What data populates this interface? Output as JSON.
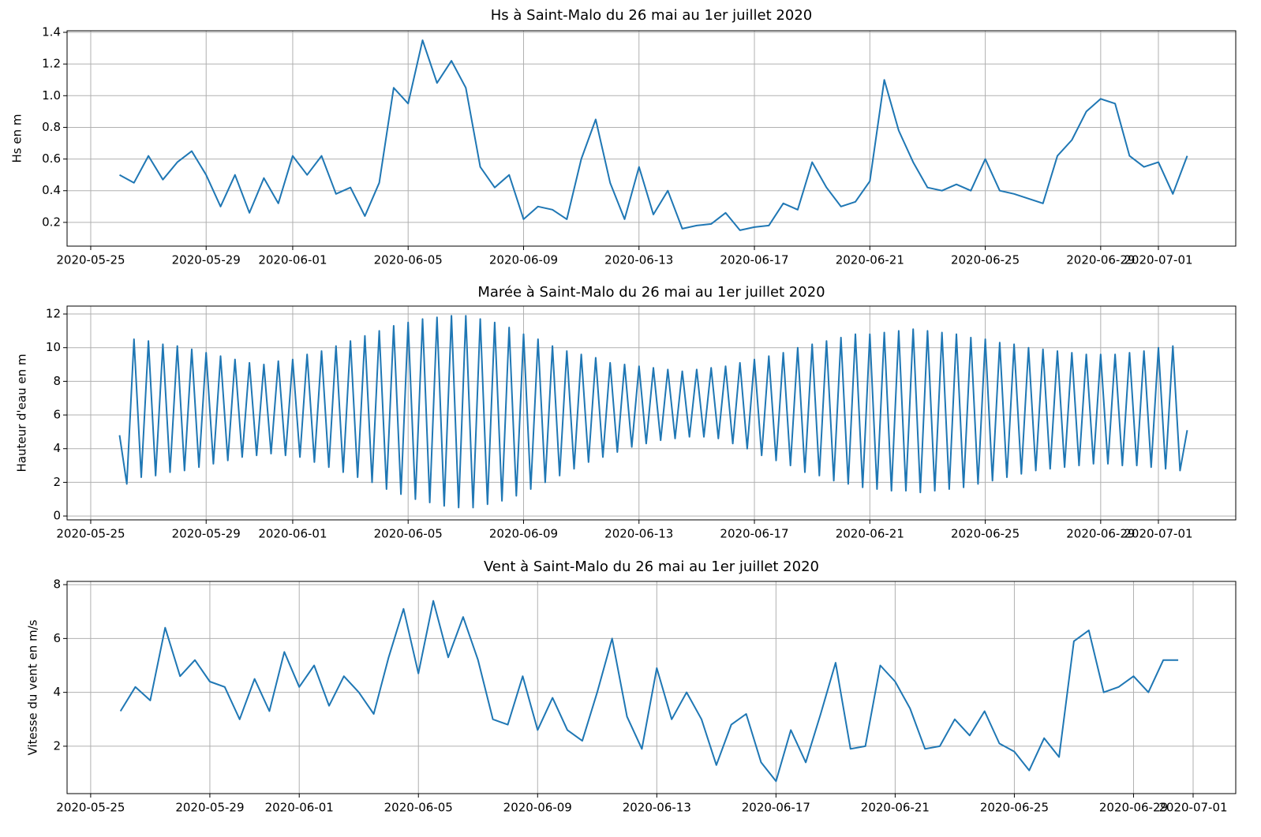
{
  "chart_data": [
    {
      "type": "line",
      "title": "Hs à Saint-Malo du 26 mai au 1er juillet 2020",
      "ylabel": "Hs en m",
      "color": "#1f77b4",
      "grid": true,
      "xlim": [
        "2020-05-24 04:20",
        "2020-07-03 16:20"
      ],
      "xticks": [
        "2020-05-25",
        "2020-05-29",
        "2020-06-01",
        "2020-06-05",
        "2020-06-09",
        "2020-06-13",
        "2020-06-17",
        "2020-06-21",
        "2020-06-25",
        "2020-06-29",
        "2020-07-01"
      ],
      "ylim": [
        0.05,
        1.41
      ],
      "yticks": [
        0.2,
        0.4,
        0.6,
        0.8,
        {
          "value": 1,
          "label": "1.0"
        },
        1.2,
        1.4
      ],
      "x": [
        "2020-05-26 00:00",
        "2020-05-26 12:00",
        "2020-05-27 00:00",
        "2020-05-27 12:00",
        "2020-05-28 00:00",
        "2020-05-28 12:00",
        "2020-05-29 00:00",
        "2020-05-29 12:00",
        "2020-05-30 00:00",
        "2020-05-30 12:00",
        "2020-05-31 00:00",
        "2020-05-31 12:00",
        "2020-06-01 00:00",
        "2020-06-01 12:00",
        "2020-06-02 00:00",
        "2020-06-02 12:00",
        "2020-06-03 00:00",
        "2020-06-03 12:00",
        "2020-06-04 00:00",
        "2020-06-04 12:00",
        "2020-06-05 00:00",
        "2020-06-05 12:00",
        "2020-06-06 00:00",
        "2020-06-06 12:00",
        "2020-06-07 00:00",
        "2020-06-07 12:00",
        "2020-06-08 00:00",
        "2020-06-08 12:00",
        "2020-06-09 00:00",
        "2020-06-09 12:00",
        "2020-06-10 00:00",
        "2020-06-10 12:00",
        "2020-06-11 00:00",
        "2020-06-11 12:00",
        "2020-06-12 00:00",
        "2020-06-12 12:00",
        "2020-06-13 00:00",
        "2020-06-13 12:00",
        "2020-06-14 00:00",
        "2020-06-14 12:00",
        "2020-06-15 00:00",
        "2020-06-15 12:00",
        "2020-06-16 00:00",
        "2020-06-16 12:00",
        "2020-06-17 00:00",
        "2020-06-17 12:00",
        "2020-06-18 00:00",
        "2020-06-18 12:00",
        "2020-06-19 00:00",
        "2020-06-19 12:00",
        "2020-06-20 00:00",
        "2020-06-20 12:00",
        "2020-06-21 00:00",
        "2020-06-21 12:00",
        "2020-06-22 00:00",
        "2020-06-22 12:00",
        "2020-06-23 00:00",
        "2020-06-23 12:00",
        "2020-06-24 00:00",
        "2020-06-24 12:00",
        "2020-06-25 00:00",
        "2020-06-25 12:00",
        "2020-06-26 00:00",
        "2020-06-26 12:00",
        "2020-06-27 00:00",
        "2020-06-27 12:00",
        "2020-06-28 00:00",
        "2020-06-28 12:00",
        "2020-06-29 00:00",
        "2020-06-29 12:00",
        "2020-06-30 00:00",
        "2020-06-30 12:00",
        "2020-07-01 00:00",
        "2020-07-01 12:00",
        "2020-07-02 00:00"
      ],
      "values": [
        0.5,
        0.45,
        0.62,
        0.47,
        0.58,
        0.65,
        0.5,
        0.3,
        0.5,
        0.26,
        0.48,
        0.32,
        0.62,
        0.5,
        0.62,
        0.38,
        0.42,
        0.24,
        0.45,
        1.05,
        0.95,
        1.35,
        1.08,
        1.22,
        1.05,
        0.55,
        0.42,
        0.5,
        0.22,
        0.3,
        0.28,
        0.22,
        0.6,
        0.85,
        0.45,
        0.22,
        0.55,
        0.25,
        0.4,
        0.16,
        0.18,
        0.19,
        0.26,
        0.15,
        0.17,
        0.18,
        0.32,
        0.28,
        0.58,
        0.42,
        0.3,
        0.33,
        0.46,
        1.1,
        0.78,
        0.58,
        0.42,
        0.4,
        0.44,
        0.4,
        0.6,
        0.4,
        0.38,
        0.35,
        0.32,
        0.62,
        0.72,
        0.9,
        0.98,
        0.95,
        0.62,
        0.55,
        0.58,
        0.38,
        0.62
      ]
    },
    {
      "type": "line",
      "title": "Marée à Saint-Malo du 26 mai au 1er juillet 2020",
      "ylabel": "Hauteur d'eau en m",
      "color": "#1f77b4",
      "grid": true,
      "xlim": [
        "2020-05-24 04:20",
        "2020-07-03 16:20"
      ],
      "xticks": [
        "2020-05-25",
        "2020-05-29",
        "2020-06-01",
        "2020-06-05",
        "2020-06-09",
        "2020-06-13",
        "2020-06-17",
        "2020-06-21",
        "2020-06-25",
        "2020-06-29",
        "2020-07-01"
      ],
      "ylim": [
        -0.23,
        12.47
      ],
      "yticks": [
        0,
        2,
        4,
        6,
        8,
        10,
        12
      ],
      "x": [
        "2020-05-26 00:00",
        "2020-05-26 06:00",
        "2020-05-26 12:00",
        "2020-05-26 18:00",
        "2020-05-27 00:00",
        "2020-05-27 06:00",
        "2020-05-27 12:00",
        "2020-05-27 18:00",
        "2020-05-28 00:00",
        "2020-05-28 06:00",
        "2020-05-28 12:00",
        "2020-05-28 18:00",
        "2020-05-29 00:00",
        "2020-05-29 06:00",
        "2020-05-29 12:00",
        "2020-05-29 18:00",
        "2020-05-30 00:00",
        "2020-05-30 06:00",
        "2020-05-30 12:00",
        "2020-05-30 18:00",
        "2020-05-31 00:00",
        "2020-05-31 06:00",
        "2020-05-31 12:00",
        "2020-05-31 18:00",
        "2020-06-01 00:00",
        "2020-06-01 06:00",
        "2020-06-01 12:00",
        "2020-06-01 18:00",
        "2020-06-02 00:00",
        "2020-06-02 06:00",
        "2020-06-02 12:00",
        "2020-06-02 18:00",
        "2020-06-03 00:00",
        "2020-06-03 06:00",
        "2020-06-03 12:00",
        "2020-06-03 18:00",
        "2020-06-04 00:00",
        "2020-06-04 06:00",
        "2020-06-04 12:00",
        "2020-06-04 18:00",
        "2020-06-05 00:00",
        "2020-06-05 06:00",
        "2020-06-05 12:00",
        "2020-06-05 18:00",
        "2020-06-06 00:00",
        "2020-06-06 06:00",
        "2020-06-06 12:00",
        "2020-06-06 18:00",
        "2020-06-07 00:00",
        "2020-06-07 06:00",
        "2020-06-07 12:00",
        "2020-06-07 18:00",
        "2020-06-08 00:00",
        "2020-06-08 06:00",
        "2020-06-08 12:00",
        "2020-06-08 18:00",
        "2020-06-09 00:00",
        "2020-06-09 06:00",
        "2020-06-09 12:00",
        "2020-06-09 18:00",
        "2020-06-10 00:00",
        "2020-06-10 06:00",
        "2020-06-10 12:00",
        "2020-06-10 18:00",
        "2020-06-11 00:00",
        "2020-06-11 06:00",
        "2020-06-11 12:00",
        "2020-06-11 18:00",
        "2020-06-12 00:00",
        "2020-06-12 06:00",
        "2020-06-12 12:00",
        "2020-06-12 18:00",
        "2020-06-13 00:00",
        "2020-06-13 06:00",
        "2020-06-13 12:00",
        "2020-06-13 18:00",
        "2020-06-14 00:00",
        "2020-06-14 06:00",
        "2020-06-14 12:00",
        "2020-06-14 18:00",
        "2020-06-15 00:00",
        "2020-06-15 06:00",
        "2020-06-15 12:00",
        "2020-06-15 18:00",
        "2020-06-16 00:00",
        "2020-06-16 06:00",
        "2020-06-16 12:00",
        "2020-06-16 18:00",
        "2020-06-17 00:00",
        "2020-06-17 06:00",
        "2020-06-17 12:00",
        "2020-06-17 18:00",
        "2020-06-18 00:00",
        "2020-06-18 06:00",
        "2020-06-18 12:00",
        "2020-06-18 18:00",
        "2020-06-19 00:00",
        "2020-06-19 06:00",
        "2020-06-19 12:00",
        "2020-06-19 18:00",
        "2020-06-20 00:00",
        "2020-06-20 06:00",
        "2020-06-20 12:00",
        "2020-06-20 18:00",
        "2020-06-21 00:00",
        "2020-06-21 06:00",
        "2020-06-21 12:00",
        "2020-06-21 18:00",
        "2020-06-22 00:00",
        "2020-06-22 06:00",
        "2020-06-22 12:00",
        "2020-06-22 18:00",
        "2020-06-23 00:00",
        "2020-06-23 06:00",
        "2020-06-23 12:00",
        "2020-06-23 18:00",
        "2020-06-24 00:00",
        "2020-06-24 06:00",
        "2020-06-24 12:00",
        "2020-06-24 18:00",
        "2020-06-25 00:00",
        "2020-06-25 06:00",
        "2020-06-25 12:00",
        "2020-06-25 18:00",
        "2020-06-26 00:00",
        "2020-06-26 06:00",
        "2020-06-26 12:00",
        "2020-06-26 18:00",
        "2020-06-27 00:00",
        "2020-06-27 06:00",
        "2020-06-27 12:00",
        "2020-06-27 18:00",
        "2020-06-28 00:00",
        "2020-06-28 06:00",
        "2020-06-28 12:00",
        "2020-06-28 18:00",
        "2020-06-29 00:00",
        "2020-06-29 06:00",
        "2020-06-29 12:00",
        "2020-06-29 18:00",
        "2020-06-30 00:00",
        "2020-06-30 06:00",
        "2020-06-30 12:00",
        "2020-06-30 18:00",
        "2020-07-01 00:00",
        "2020-07-01 06:00",
        "2020-07-01 12:00",
        "2020-07-01 18:00",
        "2020-07-02 00:00"
      ],
      "values": [
        4.8,
        1.9,
        10.5,
        2.3,
        10.4,
        2.4,
        10.2,
        2.6,
        10.1,
        2.7,
        9.9,
        2.9,
        9.7,
        3.1,
        9.5,
        3.3,
        9.3,
        3.5,
        9.1,
        3.6,
        9.0,
        3.7,
        9.2,
        3.6,
        9.3,
        3.5,
        9.6,
        3.2,
        9.8,
        2.9,
        10.1,
        2.6,
        10.4,
        2.3,
        10.7,
        2.0,
        11.0,
        1.6,
        11.3,
        1.3,
        11.5,
        1.0,
        11.7,
        0.8,
        11.8,
        0.6,
        11.9,
        0.5,
        11.9,
        0.5,
        11.7,
        0.7,
        11.5,
        0.9,
        11.2,
        1.2,
        10.8,
        1.6,
        10.5,
        2.0,
        10.1,
        2.4,
        9.8,
        2.8,
        9.6,
        3.2,
        9.4,
        3.5,
        9.1,
        3.8,
        9.0,
        4.1,
        8.9,
        4.3,
        8.8,
        4.5,
        8.7,
        4.6,
        8.6,
        4.7,
        8.7,
        4.7,
        8.8,
        4.6,
        8.9,
        4.3,
        9.1,
        4.0,
        9.3,
        3.6,
        9.5,
        3.3,
        9.7,
        3.0,
        10.0,
        2.6,
        10.2,
        2.4,
        10.4,
        2.1,
        10.6,
        1.9,
        10.8,
        1.7,
        10.8,
        1.6,
        10.9,
        1.5,
        11.0,
        1.5,
        11.1,
        1.4,
        11.0,
        1.5,
        10.9,
        1.6,
        10.8,
        1.7,
        10.6,
        1.9,
        10.5,
        2.1,
        10.3,
        2.3,
        10.2,
        2.5,
        10.0,
        2.7,
        9.9,
        2.8,
        9.8,
        2.9,
        9.7,
        3.0,
        9.6,
        3.1,
        9.6,
        3.1,
        9.6,
        3.0,
        9.7,
        3.0,
        9.8,
        2.9,
        10.0,
        2.8,
        10.1,
        2.7,
        5.1
      ]
    },
    {
      "type": "line",
      "title": "Vent à Saint-Malo du 26 mai au 1er juillet 2020",
      "ylabel": "Vitesse du vent en m/s",
      "color": "#1f77b4",
      "grid": true,
      "xlim": [
        "2020-05-24 05:00",
        "2020-07-02 10:20"
      ],
      "xticks": [
        "2020-05-25",
        "2020-05-29",
        "2020-06-01",
        "2020-06-05",
        "2020-06-09",
        "2020-06-13",
        "2020-06-17",
        "2020-06-21",
        "2020-06-25",
        "2020-06-29",
        "2020-07-01"
      ],
      "ylim": [
        0.24,
        8.12
      ],
      "yticks": [
        2,
        4,
        6,
        8
      ],
      "x": [
        "2020-05-26 00:00",
        "2020-05-26 12:00",
        "2020-05-27 00:00",
        "2020-05-27 12:00",
        "2020-05-28 00:00",
        "2020-05-28 12:00",
        "2020-05-29 00:00",
        "2020-05-29 12:00",
        "2020-05-30 00:00",
        "2020-05-30 12:00",
        "2020-05-31 00:00",
        "2020-05-31 12:00",
        "2020-06-01 00:00",
        "2020-06-01 12:00",
        "2020-06-02 00:00",
        "2020-06-02 12:00",
        "2020-06-03 00:00",
        "2020-06-03 12:00",
        "2020-06-04 00:00",
        "2020-06-04 12:00",
        "2020-06-05 00:00",
        "2020-06-05 12:00",
        "2020-06-06 00:00",
        "2020-06-06 12:00",
        "2020-06-07 00:00",
        "2020-06-07 12:00",
        "2020-06-08 00:00",
        "2020-06-08 12:00",
        "2020-06-09 00:00",
        "2020-06-09 12:00",
        "2020-06-10 00:00",
        "2020-06-10 12:00",
        "2020-06-11 00:00",
        "2020-06-11 12:00",
        "2020-06-12 00:00",
        "2020-06-12 12:00",
        "2020-06-13 00:00",
        "2020-06-13 12:00",
        "2020-06-14 00:00",
        "2020-06-14 12:00",
        "2020-06-15 00:00",
        "2020-06-15 12:00",
        "2020-06-16 00:00",
        "2020-06-16 12:00",
        "2020-06-17 00:00",
        "2020-06-17 12:00",
        "2020-06-18 00:00",
        "2020-06-18 12:00",
        "2020-06-19 00:00",
        "2020-06-19 12:00",
        "2020-06-20 00:00",
        "2020-06-20 12:00",
        "2020-06-21 00:00",
        "2020-06-21 12:00",
        "2020-06-22 00:00",
        "2020-06-22 12:00",
        "2020-06-23 00:00",
        "2020-06-23 12:00",
        "2020-06-24 00:00",
        "2020-06-24 12:00",
        "2020-06-25 00:00",
        "2020-06-25 12:00",
        "2020-06-26 00:00",
        "2020-06-26 12:00",
        "2020-06-27 00:00",
        "2020-06-27 12:00",
        "2020-06-28 00:00",
        "2020-06-28 12:00",
        "2020-06-29 00:00",
        "2020-06-29 12:00",
        "2020-06-30 00:00",
        "2020-06-30 12:00"
      ],
      "values": [
        3.3,
        4.2,
        3.7,
        6.4,
        4.6,
        5.2,
        4.4,
        4.2,
        3.0,
        4.5,
        3.3,
        5.5,
        4.2,
        5.0,
        3.5,
        4.6,
        4.0,
        3.2,
        5.3,
        7.1,
        4.7,
        7.4,
        5.3,
        6.8,
        5.2,
        3.0,
        2.8,
        4.6,
        2.6,
        3.8,
        2.6,
        2.2,
        4.0,
        6.0,
        3.1,
        1.9,
        4.9,
        3.0,
        4.0,
        3.0,
        1.3,
        2.8,
        3.2,
        1.4,
        0.7,
        2.6,
        1.4,
        3.2,
        5.1,
        1.9,
        2.0,
        5.0,
        4.4,
        3.4,
        1.9,
        2.0,
        3.0,
        2.4,
        3.3,
        2.1,
        1.8,
        1.1,
        2.3,
        1.6,
        5.9,
        6.3,
        4.0,
        4.2,
        4.6,
        4.0,
        5.2,
        5.2
      ]
    }
  ]
}
